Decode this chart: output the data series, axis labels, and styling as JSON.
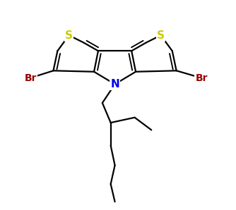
{
  "background_color": "#ffffff",
  "atom_colors": {
    "S": "#cccc00",
    "N": "#0000ee",
    "Br": "#990000",
    "C": "#000000"
  },
  "bond_lw": 1.6,
  "figsize": [
    3.34,
    2.98
  ],
  "dpi": 100
}
